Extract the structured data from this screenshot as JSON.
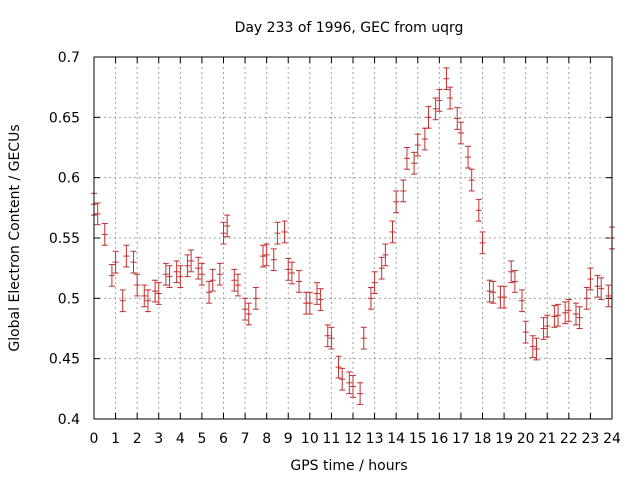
{
  "chart_data": {
    "type": "scatter",
    "title": "Day 233 of 1996, GEC from uqrg",
    "xlabel": "GPS time / hours",
    "ylabel": "Global Electron Content / GECUs",
    "xlim": [
      0,
      24
    ],
    "ylim": [
      0.4,
      0.7
    ],
    "xticks": [
      0,
      1,
      2,
      3,
      4,
      5,
      6,
      7,
      8,
      9,
      10,
      11,
      12,
      13,
      14,
      15,
      16,
      17,
      18,
      19,
      20,
      21,
      22,
      23,
      24
    ],
    "xtick_labels": [
      "0",
      "1",
      "2",
      "3",
      "4",
      "5",
      "6",
      "7",
      "8",
      "9",
      "10",
      "11",
      "12",
      "13",
      "14",
      "15",
      "16",
      "17",
      "18",
      "19",
      "20",
      "21",
      "22",
      "23",
      "24"
    ],
    "yticks": [
      0.4,
      0.45,
      0.5,
      0.55,
      0.6,
      0.65,
      0.7
    ],
    "ytick_labels": [
      "0.4",
      "0.45",
      "0.5",
      "0.55",
      "0.6",
      "0.65",
      "0.7"
    ],
    "grid": true,
    "color": "#c0302f",
    "error": 0.009,
    "series": [
      {
        "x": [
          0.0,
          0.17,
          0.5,
          0.83,
          1.0,
          1.33,
          1.5,
          1.83,
          2.0,
          2.33,
          2.5,
          2.83,
          3.0,
          3.33,
          3.5,
          3.83,
          4.0,
          4.33,
          4.5,
          4.83,
          5.0,
          5.33,
          5.5,
          5.83,
          6.0,
          6.17,
          6.5,
          6.67,
          7.0,
          7.17,
          7.5,
          7.83,
          8.0,
          8.33,
          8.5,
          8.83,
          9.0,
          9.17,
          9.5,
          9.83,
          10.0,
          10.33,
          10.5,
          10.83,
          11.0,
          11.33,
          11.5,
          11.83,
          12.0,
          12.33,
          12.5,
          12.83,
          13.0,
          13.33,
          13.5,
          13.83,
          14.0,
          14.33,
          14.5,
          14.83,
          15.0,
          15.33,
          15.5,
          15.83,
          16.0,
          16.33,
          16.5,
          16.83,
          17.0,
          17.33,
          17.5,
          17.83,
          18.0,
          18.33,
          18.5,
          18.83,
          19.0,
          19.33,
          19.5,
          19.83,
          20.0,
          20.33,
          20.5,
          20.83,
          21.0,
          21.33,
          21.5,
          21.83,
          22.0,
          22.33,
          22.5,
          22.83,
          23.0,
          23.33,
          23.5,
          23.83,
          24.0
        ],
        "y": [
          0.578,
          0.57,
          0.553,
          0.519,
          0.53,
          0.498,
          0.535,
          0.53,
          0.511,
          0.502,
          0.498,
          0.506,
          0.504,
          0.52,
          0.518,
          0.522,
          0.518,
          0.527,
          0.531,
          0.525,
          0.52,
          0.505,
          0.515,
          0.52,
          0.554,
          0.56,
          0.515,
          0.511,
          0.491,
          0.487,
          0.5,
          0.535,
          0.536,
          0.532,
          0.554,
          0.555,
          0.524,
          0.521,
          0.514,
          0.496,
          0.496,
          0.504,
          0.499,
          0.469,
          0.467,
          0.443,
          0.433,
          0.43,
          0.427,
          0.421,
          0.467,
          0.5,
          0.513,
          0.525,
          0.536,
          0.555,
          0.58,
          0.589,
          0.616,
          0.612,
          0.627,
          0.632,
          0.65,
          0.657,
          0.664,
          0.682,
          0.666,
          0.649,
          0.637,
          0.617,
          0.598,
          0.573,
          0.546,
          0.506,
          0.505,
          0.501,
          0.501,
          0.522,
          0.514,
          0.498,
          0.472,
          0.46,
          0.458,
          0.475,
          0.477,
          0.485,
          0.486,
          0.488,
          0.49,
          0.487,
          0.484,
          0.5,
          0.516,
          0.51,
          0.508,
          0.502,
          0.55
        ]
      }
    ]
  }
}
